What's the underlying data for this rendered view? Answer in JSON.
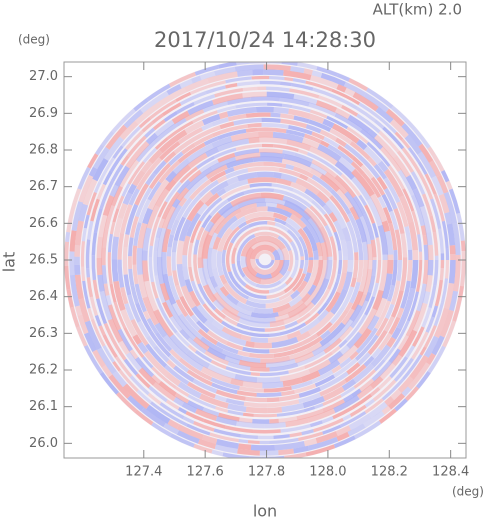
{
  "chart_data": {
    "type": "radar_ppi",
    "title": "2017/10/24 14:28:30",
    "annotation": "ALT(km) 2.0",
    "x_label": "lon",
    "y_label": "lat",
    "x_unit": "(deg)",
    "y_unit": "(deg)",
    "xlim": [
      127.14,
      128.45
    ],
    "ylim": [
      25.96,
      27.04
    ],
    "xticks": [
      127.4,
      127.6,
      127.8,
      {
        "value": 128.0,
        "label": "128.0"
      },
      128.2,
      128.4
    ],
    "yticks": [
      {
        "value": 26.0,
        "label": "26.0"
      },
      26.1,
      26.2,
      26.3,
      26.4,
      26.5,
      26.6,
      26.7,
      26.8,
      26.9,
      {
        "value": 27.0,
        "label": "27.0"
      }
    ],
    "colors": [
      "#f4a6a6",
      "#aab0f4"
    ]
  }
}
